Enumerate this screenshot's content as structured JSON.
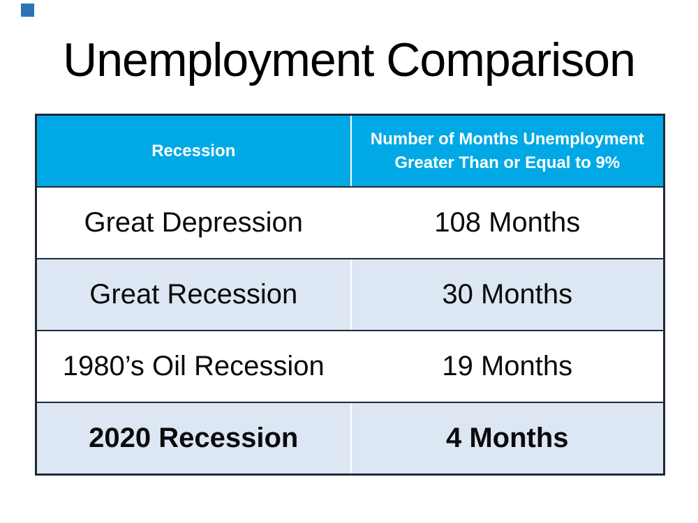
{
  "page": {
    "title": "Unemployment Comparison"
  },
  "table": {
    "columns": [
      {
        "label": "Recession"
      },
      {
        "label": "Number of Months Unemployment Greater Than or Equal to 9%"
      }
    ],
    "rows": [
      {
        "recession": "Great Depression",
        "months": "108 Months",
        "bold": false,
        "shaded": false
      },
      {
        "recession": "Great Recession",
        "months": "30 Months",
        "bold": false,
        "shaded": true
      },
      {
        "recession": "1980’s Oil Recession",
        "months": "19 Months",
        "bold": false,
        "shaded": false
      },
      {
        "recession": "2020 Recession",
        "months": "4 Months",
        "bold": true,
        "shaded": true
      }
    ]
  },
  "colors": {
    "header_bg": "#00A9E6",
    "header_text": "#FFFFFF",
    "row_shaded_bg": "#DCE7F3",
    "row_bg": "#FFFFFF",
    "border": "#1F2A36",
    "divider": "#FFFFFF",
    "title_text": "#000000",
    "corner_square": "#2E74B5"
  }
}
